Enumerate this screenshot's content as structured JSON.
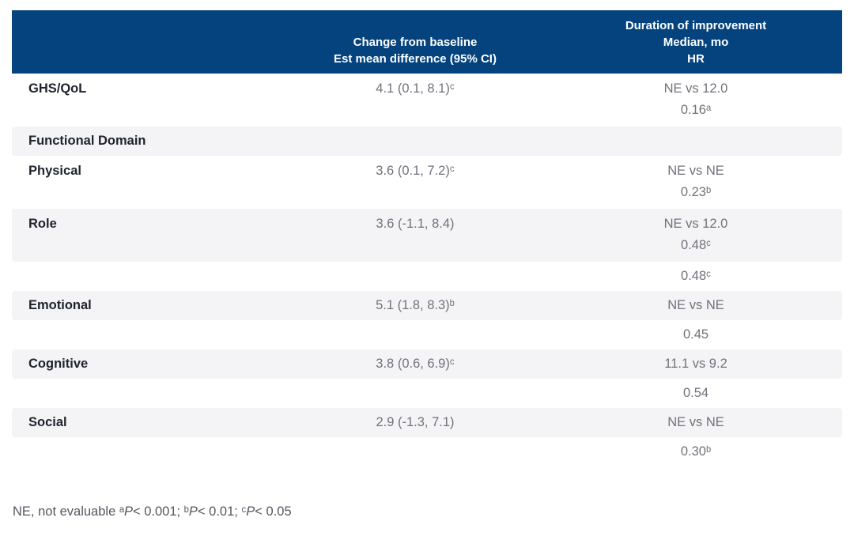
{
  "colors": {
    "header_bg": "#04437d",
    "header_text": "#ffffff",
    "shaded_row_bg": "#f4f4f7",
    "label_text": "#20242e",
    "value_text": "#71717b",
    "footnote_text": "#565660"
  },
  "table": {
    "header": {
      "label_col": "",
      "change_col_lines": [
        "Change from baseline",
        "Est mean difference (95% CI)"
      ],
      "duration_col_lines": [
        "Duration of improvement",
        "Median, mo",
        "HR"
      ]
    },
    "rows": [
      {
        "label": "GHS/QoL",
        "change": "4.1 (0.1, 8.1)ᶜ",
        "duration_lines": [
          "NE vs 12.0",
          "0.16ᵃ"
        ],
        "shaded": false
      },
      {
        "label": "Functional Domain",
        "change": "",
        "duration_lines": [],
        "shaded": true
      },
      {
        "label": "Physical",
        "change": "3.6 (0.1, 7.2)ᶜ",
        "duration_lines": [
          "NE vs NE",
          "0.23ᵇ"
        ],
        "shaded": false
      },
      {
        "label": "Role",
        "change": "3.6 (-1.1, 8.4)",
        "duration_lines": [
          "NE vs 12.0",
          "0.48ᶜ"
        ],
        "shaded": true
      },
      {
        "label": "",
        "change": "",
        "duration_lines": [
          "0.48ᶜ"
        ],
        "shaded": false
      },
      {
        "label": "Emotional",
        "change": "5.1 (1.8, 8.3)ᵇ",
        "duration_lines": [
          "NE vs NE"
        ],
        "shaded": true
      },
      {
        "label": "",
        "change": "",
        "duration_lines": [
          "0.45"
        ],
        "shaded": false
      },
      {
        "label": "Cognitive",
        "change": "3.8 (0.6, 6.9)ᶜ",
        "duration_lines": [
          "11.1 vs 9.2"
        ],
        "shaded": true
      },
      {
        "label": "",
        "change": "",
        "duration_lines": [
          "0.54"
        ],
        "shaded": false
      },
      {
        "label": "Social",
        "change": "2.9 (-1.3, 7.1)",
        "duration_lines": [
          "NE vs NE"
        ],
        "shaded": true
      },
      {
        "label": "",
        "change": "",
        "duration_lines": [
          "0.30ᵇ"
        ],
        "shaded": false
      }
    ]
  },
  "footnote": {
    "segments": [
      {
        "text": "NE, not evaluable ᵃ",
        "italic": false
      },
      {
        "text": "P",
        "italic": true
      },
      {
        "text": "< 0.001; ᵇ",
        "italic": false
      },
      {
        "text": "P",
        "italic": true
      },
      {
        "text": "< 0.01; ᶜ",
        "italic": false
      },
      {
        "text": "P",
        "italic": true
      },
      {
        "text": "< 0.05",
        "italic": false
      }
    ]
  }
}
